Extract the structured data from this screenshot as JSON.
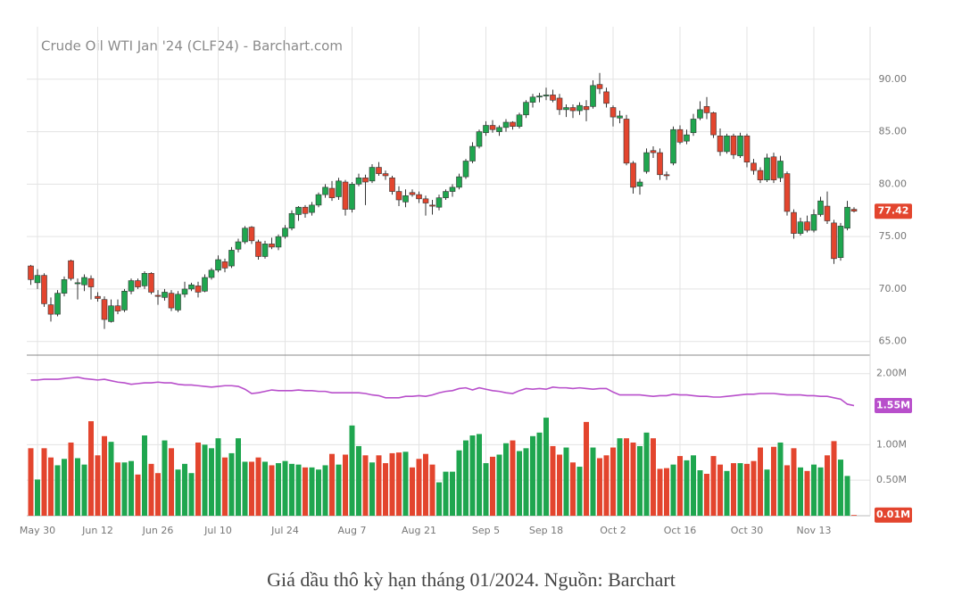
{
  "caption": "Giá dầu thô kỳ hạn tháng 01/2024. Nguồn: Barchart",
  "chart_data": [
    {
      "type": "candlestick",
      "title": "Crude Oil WTI Jan '24 (CLF24) - Barchart.com",
      "up_color": "#1fa64f",
      "down_color": "#e3452e",
      "grid": true,
      "categories": [
        null,
        "May 30",
        null,
        null,
        null,
        null,
        null,
        null,
        null,
        null,
        "Jun 12",
        null,
        null,
        null,
        null,
        null,
        null,
        null,
        null,
        "Jun 26",
        null,
        null,
        null,
        null,
        null,
        null,
        null,
        null,
        "Jul 10",
        null,
        null,
        null,
        null,
        null,
        null,
        null,
        null,
        null,
        "Jul 24",
        null,
        null,
        null,
        null,
        null,
        null,
        null,
        null,
        null,
        "Aug 7",
        null,
        null,
        null,
        null,
        null,
        null,
        null,
        null,
        null,
        "Aug 21",
        null,
        null,
        null,
        null,
        null,
        null,
        null,
        null,
        null,
        "Sep 5",
        null,
        null,
        null,
        null,
        null,
        null,
        null,
        null,
        "Sep 18",
        null,
        null,
        null,
        null,
        null,
        null,
        null,
        null,
        null,
        "Oct 2",
        null,
        null,
        null,
        null,
        null,
        null,
        null,
        null,
        null,
        "Oct 16",
        null,
        null,
        null,
        null,
        null,
        null,
        null,
        null,
        null,
        "Oct 30",
        null,
        null,
        null,
        null,
        null,
        null,
        null,
        null,
        null,
        "Nov 13",
        null,
        null,
        null,
        null,
        null,
        null
      ],
      "open": [
        72.2,
        70.6,
        71.3,
        68.5,
        67.6,
        69.6,
        72.7,
        70.5,
        70.4,
        71.0,
        69.3,
        69.0,
        66.9,
        68.4,
        68.0,
        69.8,
        70.8,
        70.3,
        71.5,
        69.4,
        69.2,
        69.6,
        68.0,
        69.5,
        70.0,
        70.3,
        69.8,
        71.1,
        71.8,
        72.6,
        72.2,
        73.8,
        74.5,
        75.9,
        74.5,
        73.1,
        74.3,
        74.0,
        75.0,
        75.8,
        77.1,
        77.8,
        77.3,
        78.0,
        79.0,
        79.6,
        78.8,
        80.2,
        77.6,
        80.0,
        80.6,
        80.3,
        81.6,
        81.0,
        80.6,
        79.3,
        78.3,
        79.2,
        79.0,
        78.6,
        78.0,
        77.8,
        78.7,
        79.3,
        79.7,
        80.7,
        82.2,
        83.6,
        84.9,
        85.6,
        85.0,
        85.4,
        85.9,
        85.5,
        86.6,
        87.8,
        88.3,
        88.4,
        88.5,
        88.2,
        87.1,
        87.3,
        87.0,
        87.4,
        87.4,
        89.5,
        88.8,
        87.3,
        86.3,
        86.2,
        82.0,
        79.8,
        81.2,
        83.2,
        83.0,
        80.9,
        82.0,
        85.2,
        84.1,
        84.9,
        86.3,
        87.4,
        86.8,
        84.6,
        83.1,
        84.6,
        82.7,
        84.6,
        82.0,
        81.3,
        80.4,
        82.6,
        80.6,
        81.0,
        77.3,
        75.3,
        76.4,
        75.6,
        77.1,
        77.9,
        76.3,
        73.0,
        75.8,
        77.6
      ],
      "high": [
        72.3,
        71.9,
        71.5,
        69.2,
        69.9,
        71.2,
        72.8,
        71.0,
        71.4,
        71.3,
        69.7,
        69.3,
        69.0,
        69.0,
        70.0,
        71.0,
        71.0,
        71.7,
        71.6,
        69.9,
        70.0,
        69.9,
        69.8,
        70.7,
        70.6,
        70.7,
        71.4,
        72.0,
        73.2,
        72.9,
        74.0,
        74.8,
        76.0,
        76.0,
        74.7,
        74.6,
        74.9,
        75.2,
        76.1,
        77.5,
        77.9,
        78.0,
        78.3,
        79.2,
        80.0,
        80.3,
        80.6,
        80.4,
        80.2,
        81.0,
        80.9,
        81.9,
        82.1,
        81.3,
        80.8,
        79.8,
        79.5,
        79.5,
        79.3,
        78.9,
        78.5,
        79.0,
        79.5,
        80.0,
        81.0,
        82.4,
        84.0,
        85.2,
        86.0,
        86.1,
        85.6,
        86.2,
        86.0,
        86.8,
        88.0,
        88.6,
        88.7,
        89.2,
        89.0,
        88.6,
        87.6,
        87.6,
        87.8,
        88.0,
        89.9,
        90.6,
        89.2,
        87.5,
        87.0,
        86.6,
        82.2,
        80.5,
        83.4,
        83.6,
        83.4,
        81.2,
        85.5,
        85.6,
        85.2,
        86.7,
        87.9,
        88.3,
        86.9,
        85.3,
        84.8,
        84.8,
        84.9,
        84.8,
        82.4,
        81.6,
        82.9,
        83.0,
        82.7,
        81.2,
        77.6,
        76.8,
        77.0,
        77.6,
        78.8,
        79.3,
        76.6,
        76.3,
        78.4,
        77.8
      ],
      "low": [
        70.4,
        70.0,
        68.3,
        66.9,
        67.4,
        69.3,
        70.8,
        69.0,
        69.8,
        69.0,
        68.8,
        66.2,
        66.8,
        67.6,
        67.8,
        69.5,
        70.0,
        70.0,
        69.5,
        68.5,
        68.9,
        67.9,
        67.8,
        69.2,
        69.8,
        69.2,
        69.7,
        70.9,
        71.6,
        71.6,
        72.0,
        73.5,
        74.3,
        74.3,
        72.8,
        72.9,
        73.8,
        73.7,
        74.8,
        75.6,
        76.5,
        76.8,
        77.0,
        77.8,
        78.7,
        78.4,
        78.5,
        77.0,
        77.3,
        79.8,
        78.0,
        80.1,
        80.8,
        80.4,
        79.0,
        77.9,
        77.8,
        78.8,
        78.2,
        77.0,
        77.1,
        77.5,
        78.5,
        78.8,
        79.5,
        80.5,
        82.0,
        83.4,
        84.6,
        84.9,
        84.6,
        85.0,
        85.2,
        85.3,
        86.3,
        87.3,
        87.8,
        88.0,
        87.8,
        86.6,
        86.4,
        86.3,
        86.6,
        86.0,
        87.2,
        88.6,
        87.3,
        85.5,
        85.8,
        81.8,
        79.1,
        79.0,
        81.0,
        82.5,
        80.4,
        80.4,
        81.8,
        83.8,
        83.8,
        84.6,
        86.1,
        86.2,
        84.4,
        82.7,
        82.9,
        82.4,
        82.5,
        81.6,
        80.9,
        80.1,
        80.2,
        80.1,
        80.2,
        77.0,
        74.8,
        75.1,
        75.4,
        75.4,
        76.9,
        76.2,
        72.4,
        72.7,
        75.6,
        77.3
      ],
      "close": [
        70.9,
        71.3,
        68.6,
        67.6,
        69.6,
        70.9,
        71.0,
        70.6,
        71.1,
        70.2,
        69.1,
        67.1,
        68.4,
        67.9,
        69.8,
        70.8,
        70.2,
        71.5,
        69.7,
        69.3,
        69.7,
        68.2,
        69.5,
        70.0,
        70.4,
        69.7,
        71.1,
        71.8,
        72.8,
        72.0,
        73.7,
        74.5,
        75.8,
        74.6,
        73.1,
        74.3,
        74.0,
        75.0,
        75.8,
        77.2,
        77.8,
        77.2,
        78.0,
        79.0,
        79.7,
        78.7,
        80.3,
        77.6,
        80.0,
        80.6,
        80.2,
        81.6,
        81.0,
        80.8,
        79.3,
        78.5,
        78.9,
        79.0,
        78.6,
        78.2,
        77.9,
        78.7,
        79.3,
        79.7,
        80.7,
        82.2,
        83.6,
        85.0,
        85.6,
        85.2,
        85.4,
        85.9,
        85.5,
        86.6,
        87.8,
        88.3,
        88.4,
        88.5,
        88.0,
        87.1,
        87.3,
        87.0,
        87.5,
        87.1,
        89.4,
        89.1,
        87.7,
        86.4,
        86.5,
        82.0,
        79.7,
        80.2,
        83.0,
        83.0,
        80.9,
        80.8,
        85.2,
        84.0,
        84.7,
        86.2,
        87.1,
        86.8,
        84.7,
        83.1,
        84.6,
        82.8,
        84.6,
        82.1,
        81.3,
        80.4,
        82.5,
        80.4,
        82.2,
        77.4,
        75.3,
        76.4,
        75.6,
        77.1,
        78.4,
        76.5,
        72.9,
        76.0,
        77.8,
        77.42
      ],
      "ylim": [
        63.7,
        95
      ],
      "yticks": [
        {
          "value": 65,
          "label": "65.00"
        },
        {
          "value": 70,
          "label": "70.00"
        },
        {
          "value": 75,
          "label": "75.00"
        },
        {
          "value": 80,
          "label": "80.00"
        },
        {
          "value": 85,
          "label": "85.00"
        },
        {
          "value": 90,
          "label": "90.00"
        }
      ]
    },
    {
      "type": "volume",
      "grid": true,
      "ylim": [
        0,
        2.26
      ],
      "yticks": [
        {
          "value": 0.5,
          "label": "0.50M"
        },
        {
          "value": 1,
          "label": "1.00M"
        },
        {
          "value": 2,
          "label": "2.00M"
        }
      ],
      "series": [
        {
          "type": "bar",
          "values": [
            0.95,
            0.51,
            0.95,
            0.82,
            0.71,
            0.8,
            1.03,
            0.81,
            0.72,
            1.33,
            0.85,
            1.12,
            1.04,
            0.75,
            0.75,
            0.77,
            0.58,
            1.13,
            0.73,
            0.6,
            1.06,
            0.95,
            0.65,
            0.73,
            0.6,
            1.03,
            1.0,
            0.95,
            1.09,
            0.82,
            0.88,
            1.09,
            0.76,
            0.76,
            0.82,
            0.76,
            0.71,
            0.74,
            0.77,
            0.73,
            0.72,
            0.68,
            0.68,
            0.65,
            0.71,
            0.87,
            0.72,
            0.86,
            1.27,
            0.98,
            0.85,
            0.75,
            0.85,
            0.74,
            0.88,
            0.89,
            0.9,
            0.68,
            0.8,
            0.87,
            0.72,
            0.47,
            0.62,
            0.62,
            0.92,
            1.06,
            1.13,
            1.15,
            0.74,
            0.83,
            0.86,
            1.02,
            1.06,
            0.91,
            0.95,
            1.12,
            1.17,
            1.38,
            0.98,
            0.86,
            0.96,
            0.75,
            0.69,
            1.32,
            0.96,
            0.81,
            0.85,
            0.96,
            1.09,
            1.09,
            1.03,
            0.98,
            1.17,
            1.09,
            0.66,
            0.67,
            0.72,
            0.84,
            0.78,
            0.85,
            0.64,
            0.59,
            0.84,
            0.72,
            0.63,
            0.74,
            0.74,
            0.73,
            0.77,
            0.96,
            0.65,
            0.97,
            1.03,
            0.71,
            0.95,
            0.68,
            0.63,
            0.72,
            0.68,
            0.85,
            1.05,
            0.79,
            0.56,
            0.01
          ],
          "value_labels": [
            null,
            null,
            null,
            null,
            null,
            null,
            null,
            null,
            null,
            null,
            null,
            null,
            null,
            null,
            null,
            null,
            null,
            null,
            null,
            null,
            null,
            null,
            null,
            null,
            null,
            null,
            null,
            null,
            null,
            null,
            null,
            null,
            null,
            null,
            null,
            null,
            null,
            null,
            null,
            null,
            null,
            null,
            null,
            null,
            null,
            null,
            null,
            null,
            null,
            null,
            null,
            null,
            null,
            null,
            null,
            null,
            null,
            null,
            null,
            null,
            null,
            null,
            null,
            null,
            null,
            null,
            null,
            null,
            null,
            null,
            null,
            null,
            null,
            null,
            null,
            null,
            null,
            null,
            null,
            null,
            null,
            null,
            null,
            null,
            null,
            null,
            null,
            null,
            null,
            null,
            null,
            null,
            null,
            null,
            null,
            null,
            null,
            null,
            null,
            null,
            null,
            null,
            null,
            null,
            null,
            null,
            null,
            null,
            null,
            null,
            null,
            null,
            null,
            null,
            null,
            null,
            null,
            null,
            null,
            null,
            null,
            null,
            null,
            "0.01M"
          ]
        },
        {
          "type": "line",
          "color": "#b84fcb",
          "values": [
            1.91,
            1.91,
            1.92,
            1.92,
            1.92,
            1.93,
            1.94,
            1.95,
            1.93,
            1.92,
            1.91,
            1.92,
            1.9,
            1.88,
            1.87,
            1.85,
            1.86,
            1.87,
            1.87,
            1.88,
            1.87,
            1.87,
            1.85,
            1.84,
            1.84,
            1.83,
            1.82,
            1.81,
            1.82,
            1.83,
            1.83,
            1.82,
            1.78,
            1.72,
            1.73,
            1.75,
            1.77,
            1.76,
            1.76,
            1.76,
            1.77,
            1.76,
            1.76,
            1.75,
            1.75,
            1.73,
            1.73,
            1.73,
            1.73,
            1.73,
            1.72,
            1.7,
            1.69,
            1.66,
            1.66,
            1.66,
            1.68,
            1.68,
            1.69,
            1.68,
            1.7,
            1.73,
            1.75,
            1.76,
            1.79,
            1.8,
            1.77,
            1.8,
            1.78,
            1.76,
            1.75,
            1.73,
            1.72,
            1.76,
            1.79,
            1.78,
            1.79,
            1.78,
            1.81,
            1.8,
            1.8,
            1.79,
            1.8,
            1.79,
            1.78,
            1.79,
            1.79,
            1.74,
            1.7,
            1.7,
            1.7,
            1.7,
            1.69,
            1.68,
            1.69,
            1.69,
            1.71,
            1.7,
            1.7,
            1.69,
            1.68,
            1.68,
            1.67,
            1.67,
            1.68,
            1.69,
            1.7,
            1.71,
            1.71,
            1.72,
            1.72,
            1.72,
            1.71,
            1.7,
            1.7,
            1.7,
            1.69,
            1.69,
            1.68,
            1.68,
            1.66,
            1.64,
            1.57,
            1.55
          ],
          "value_labels": [
            null,
            null,
            null,
            null,
            null,
            null,
            null,
            null,
            null,
            null,
            null,
            null,
            null,
            null,
            null,
            null,
            null,
            null,
            null,
            null,
            null,
            null,
            null,
            null,
            null,
            null,
            null,
            null,
            null,
            null,
            null,
            null,
            null,
            null,
            null,
            null,
            null,
            null,
            null,
            null,
            null,
            null,
            null,
            null,
            null,
            null,
            null,
            null,
            null,
            null,
            null,
            null,
            null,
            null,
            null,
            null,
            null,
            null,
            null,
            null,
            null,
            null,
            null,
            null,
            null,
            null,
            null,
            null,
            null,
            null,
            null,
            null,
            null,
            null,
            null,
            null,
            null,
            null,
            null,
            null,
            null,
            null,
            null,
            null,
            null,
            null,
            null,
            null,
            null,
            null,
            null,
            null,
            null,
            null,
            null,
            null,
            null,
            null,
            null,
            null,
            null,
            null,
            null,
            null,
            null,
            null,
            null,
            null,
            null,
            null,
            null,
            null,
            null,
            null,
            null,
            null,
            null,
            null,
            null,
            null,
            null,
            null,
            null,
            "1.55M"
          ]
        }
      ]
    }
  ]
}
